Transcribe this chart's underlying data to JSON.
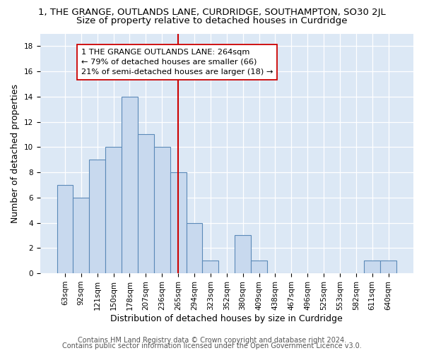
{
  "title_line1": "1, THE GRANGE, OUTLANDS LANE, CURDRIDGE, SOUTHAMPTON, SO30 2JL",
  "title_line2": "Size of property relative to detached houses in Curdridge",
  "xlabel": "Distribution of detached houses by size in Curdridge",
  "ylabel": "Number of detached properties",
  "categories": [
    "63sqm",
    "92sqm",
    "121sqm",
    "150sqm",
    "178sqm",
    "207sqm",
    "236sqm",
    "265sqm",
    "294sqm",
    "323sqm",
    "352sqm",
    "380sqm",
    "409sqm",
    "438sqm",
    "467sqm",
    "496sqm",
    "525sqm",
    "553sqm",
    "582sqm",
    "611sqm",
    "640sqm"
  ],
  "values": [
    7,
    6,
    9,
    10,
    14,
    11,
    10,
    8,
    4,
    1,
    0,
    3,
    1,
    0,
    0,
    0,
    0,
    0,
    0,
    1,
    1
  ],
  "bar_color": "#c8d9ee",
  "bar_edge_color": "#5b8ab8",
  "marker_line_index": 7,
  "marker_line_color": "#cc0000",
  "annotation_line1": "1 THE GRANGE OUTLANDS LANE: 264sqm",
  "annotation_line2": "← 79% of detached houses are smaller (66)",
  "annotation_line3": "21% of semi-detached houses are larger (18) →",
  "annotation_box_facecolor": "#ffffff",
  "annotation_box_edgecolor": "#cc0000",
  "footnote_line1": "Contains HM Land Registry data © Crown copyright and database right 2024.",
  "footnote_line2": "Contains public sector information licensed under the Open Government Licence v3.0.",
  "ylim": [
    0,
    19
  ],
  "yticks": [
    0,
    2,
    4,
    6,
    8,
    10,
    12,
    14,
    16,
    18
  ],
  "background_color": "#ffffff",
  "plot_background_color": "#dce8f5",
  "title_fontsize": 9.5,
  "subtitle_fontsize": 9.5,
  "axis_label_fontsize": 9,
  "tick_fontsize": 7.5,
  "footnote_fontsize": 7
}
